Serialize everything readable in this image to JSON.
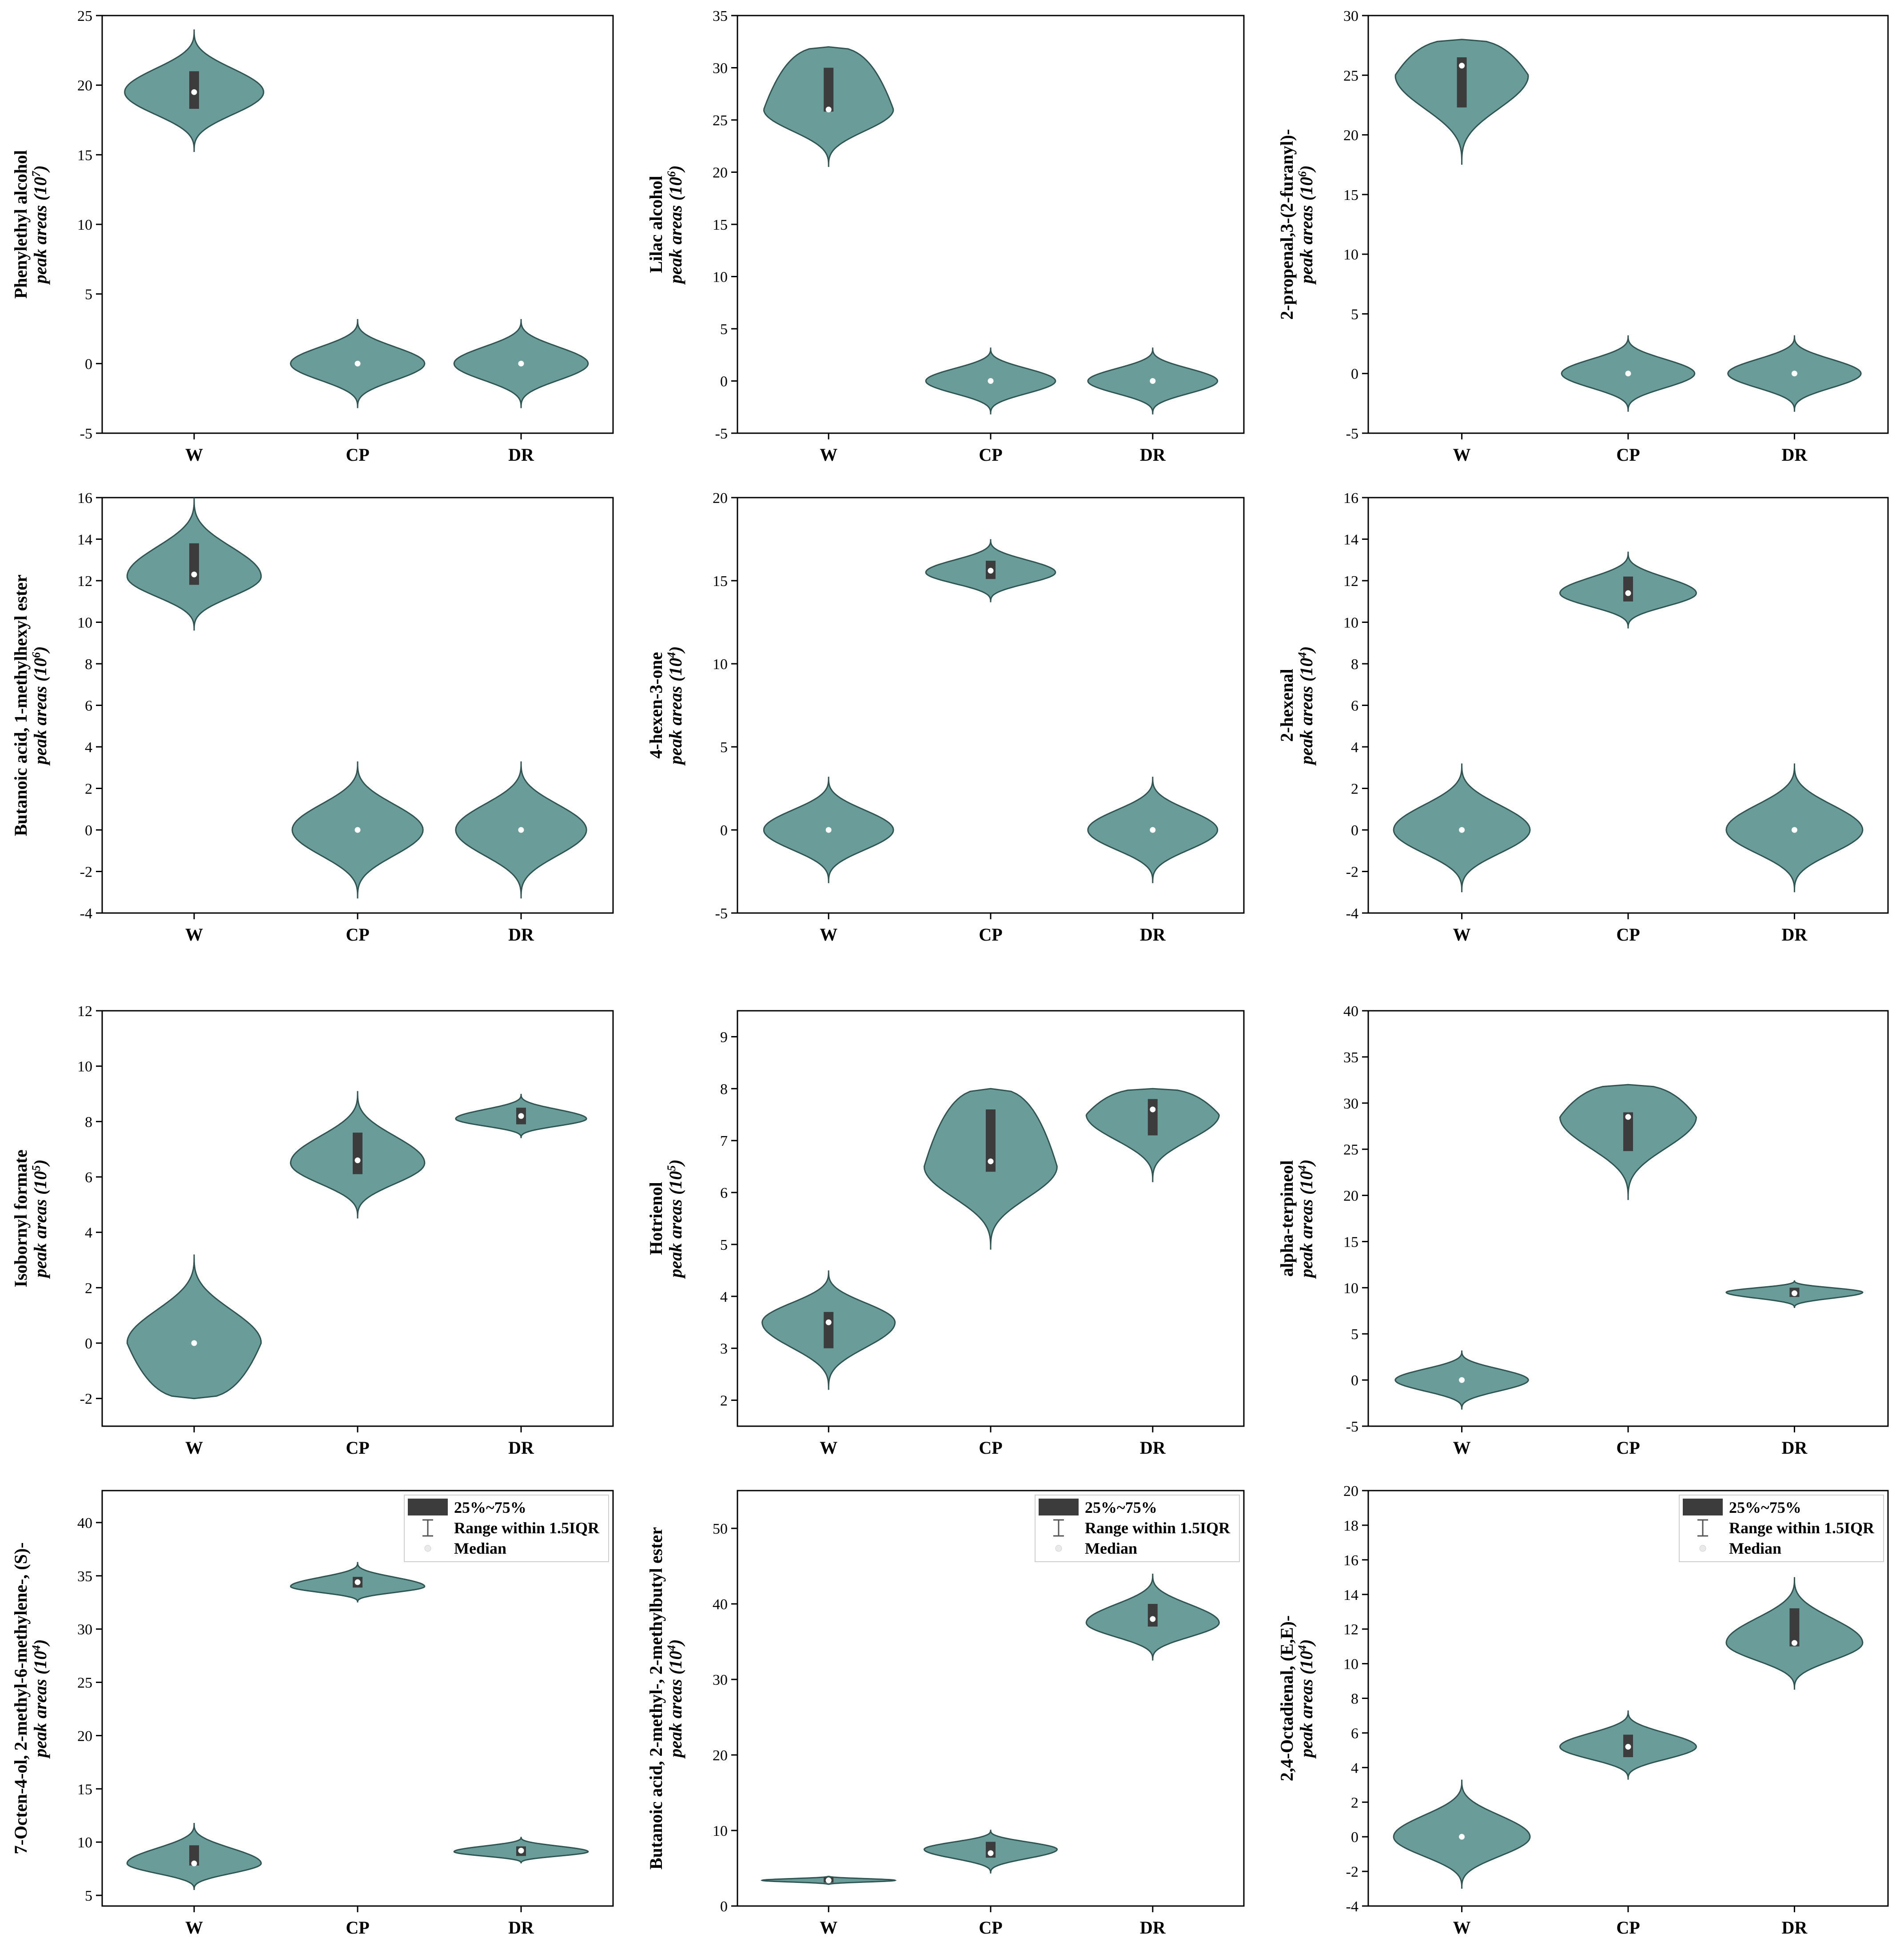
{
  "chart_data": [
    {
      "type": "violin",
      "compound": "Phenylethyl alcohol",
      "units_base": "peak areas (10",
      "units_exp": "7",
      "units_close": ")",
      "categories": [
        "W",
        "CP",
        "DR"
      ],
      "ylim": [
        -5,
        25
      ],
      "yticks": [
        -5,
        0,
        5,
        10,
        15,
        20,
        25
      ],
      "violins": [
        {
          "min": 15.2,
          "max": 24.0,
          "center": 19.5,
          "q1": 18.3,
          "q3": 21.0,
          "median": 19.5,
          "width": 0.85
        },
        {
          "min": -3.2,
          "max": 3.2,
          "center": 0,
          "q1": null,
          "q3": null,
          "median": 0,
          "width": 0.82
        },
        {
          "min": -3.2,
          "max": 3.2,
          "center": 0,
          "q1": null,
          "q3": null,
          "median": 0,
          "width": 0.82
        }
      ]
    },
    {
      "type": "violin",
      "compound": "Lilac alcohol",
      "units_base": "peak areas (10",
      "units_exp": "6",
      "units_close": ")",
      "categories": [
        "W",
        "CP",
        "DR"
      ],
      "ylim": [
        -5,
        35
      ],
      "yticks": [
        -5,
        0,
        5,
        10,
        15,
        20,
        25,
        30,
        35
      ],
      "violins": [
        {
          "min": 20.5,
          "max": 32.0,
          "center": 26.0,
          "q1": 25.8,
          "q3": 30.0,
          "median": 26.0,
          "width": 0.8,
          "flat_top": true
        },
        {
          "min": -3.2,
          "max": 3.2,
          "center": 0,
          "q1": null,
          "q3": null,
          "median": 0,
          "width": 0.8
        },
        {
          "min": -3.2,
          "max": 3.2,
          "center": 0,
          "q1": null,
          "q3": null,
          "median": 0,
          "width": 0.8
        }
      ]
    },
    {
      "type": "violin",
      "compound": "2-propenal,3-(2-furanyl)-",
      "units_base": "peak areas (10",
      "units_exp": "6",
      "units_close": ")",
      "categories": [
        "W",
        "CP",
        "DR"
      ],
      "ylim": [
        -5,
        30
      ],
      "yticks": [
        -5,
        0,
        5,
        10,
        15,
        20,
        25,
        30
      ],
      "violins": [
        {
          "min": 17.5,
          "max": 28.0,
          "center": 25.0,
          "q1": 22.3,
          "q3": 26.5,
          "median": 25.8,
          "width": 0.8,
          "flat_top": true
        },
        {
          "min": -3.2,
          "max": 3.2,
          "center": 0,
          "q1": null,
          "q3": null,
          "median": 0,
          "width": 0.8
        },
        {
          "min": -3.2,
          "max": 3.2,
          "center": 0,
          "q1": null,
          "q3": null,
          "median": 0,
          "width": 0.8
        }
      ]
    },
    {
      "type": "violin",
      "compound": "Butanoic acid, 1-methylhexyl ester",
      "units_base": "peak areas (10",
      "units_exp": "6",
      "units_close": ")",
      "categories": [
        "W",
        "CP",
        "DR"
      ],
      "ylim": [
        -4,
        16
      ],
      "yticks": [
        -4,
        -2,
        0,
        2,
        4,
        6,
        8,
        10,
        12,
        14,
        16
      ],
      "violins": [
        {
          "min": 9.6,
          "max": 16.0,
          "center": 12.2,
          "q1": 11.8,
          "q3": 13.8,
          "median": 12.3,
          "width": 0.82
        },
        {
          "min": -3.3,
          "max": 3.3,
          "center": 0,
          "q1": null,
          "q3": null,
          "median": 0,
          "width": 0.8
        },
        {
          "min": -3.3,
          "max": 3.3,
          "center": 0,
          "q1": null,
          "q3": null,
          "median": 0,
          "width": 0.8
        }
      ]
    },
    {
      "type": "violin",
      "compound": "4-hexen-3-one",
      "units_base": "peak areas (10",
      "units_exp": "4",
      "units_close": ")",
      "categories": [
        "W",
        "CP",
        "DR"
      ],
      "ylim": [
        -5,
        20
      ],
      "yticks": [
        -5,
        0,
        5,
        10,
        15,
        20
      ],
      "violins": [
        {
          "min": -3.2,
          "max": 3.2,
          "center": 0,
          "q1": null,
          "q3": null,
          "median": 0,
          "width": 0.8
        },
        {
          "min": 13.7,
          "max": 17.5,
          "center": 15.5,
          "q1": 15.1,
          "q3": 16.2,
          "median": 15.6,
          "width": 0.8
        },
        {
          "min": -3.2,
          "max": 3.2,
          "center": 0,
          "q1": null,
          "q3": null,
          "median": 0,
          "width": 0.8
        }
      ]
    },
    {
      "type": "violin",
      "compound": "2-hexenal",
      "units_base": "peak areas (10",
      "units_exp": "4",
      "units_close": ")",
      "categories": [
        "W",
        "CP",
        "DR"
      ],
      "ylim": [
        -4,
        16
      ],
      "yticks": [
        -4,
        -2,
        0,
        2,
        4,
        6,
        8,
        10,
        12,
        14,
        16
      ],
      "violins": [
        {
          "min": -3.0,
          "max": 3.2,
          "center": 0,
          "q1": null,
          "q3": null,
          "median": 0,
          "width": 0.82
        },
        {
          "min": 9.7,
          "max": 13.4,
          "center": 11.4,
          "q1": 11.0,
          "q3": 12.2,
          "median": 11.4,
          "width": 0.82
        },
        {
          "min": -3.0,
          "max": 3.2,
          "center": 0,
          "q1": null,
          "q3": null,
          "median": 0,
          "width": 0.82
        }
      ]
    },
    {
      "type": "violin",
      "compound": "Isobornyl formate",
      "units_base": "peak areas (10",
      "units_exp": "5",
      "units_close": ")",
      "categories": [
        "W",
        "CP",
        "DR"
      ],
      "ylim": [
        -3,
        12
      ],
      "yticks": [
        -2,
        0,
        2,
        4,
        6,
        8,
        10,
        12
      ],
      "violins": [
        {
          "min": -2.0,
          "max": 3.2,
          "center": 0,
          "q1": null,
          "q3": null,
          "median": 0,
          "width": 0.82,
          "flat_bottom": true
        },
        {
          "min": 4.5,
          "max": 9.1,
          "center": 6.5,
          "q1": 6.1,
          "q3": 7.6,
          "median": 6.6,
          "width": 0.82
        },
        {
          "min": 7.4,
          "max": 9.0,
          "center": 8.1,
          "q1": 7.9,
          "q3": 8.5,
          "median": 8.2,
          "width": 0.8
        }
      ]
    },
    {
      "type": "violin",
      "compound": "Hotrienol",
      "units_base": "peak areas (10",
      "units_exp": "5",
      "units_close": ")",
      "categories": [
        "W",
        "CP",
        "DR"
      ],
      "ylim": [
        1.5,
        9.5
      ],
      "yticks": [
        2,
        3,
        4,
        5,
        6,
        7,
        8,
        9
      ],
      "violins": [
        {
          "min": 2.2,
          "max": 4.5,
          "center": 3.5,
          "q1": 3.0,
          "q3": 3.7,
          "median": 3.5,
          "width": 0.82
        },
        {
          "min": 4.9,
          "max": 8.0,
          "center": 6.5,
          "q1": 6.4,
          "q3": 7.6,
          "median": 6.6,
          "width": 0.82,
          "flat_top": true
        },
        {
          "min": 6.2,
          "max": 8.0,
          "center": 7.5,
          "q1": 7.1,
          "q3": 7.8,
          "median": 7.6,
          "width": 0.82,
          "flat_top": true
        }
      ]
    },
    {
      "type": "violin",
      "compound": "alpha-terpineol",
      "units_base": "peak areas (10",
      "units_exp": "4",
      "units_close": ")",
      "categories": [
        "W",
        "CP",
        "DR"
      ],
      "ylim": [
        -5,
        40
      ],
      "yticks": [
        -5,
        0,
        5,
        10,
        15,
        20,
        25,
        30,
        35,
        40
      ],
      "violins": [
        {
          "min": -3.2,
          "max": 3.2,
          "center": 0,
          "q1": null,
          "q3": null,
          "median": 0,
          "width": 0.8
        },
        {
          "min": 19.5,
          "max": 32.0,
          "center": 28.5,
          "q1": 24.8,
          "q3": 29.0,
          "median": 28.5,
          "width": 0.82,
          "flat_top": true
        },
        {
          "min": 7.8,
          "max": 10.8,
          "center": 9.5,
          "q1": 9.0,
          "q3": 10.0,
          "median": 9.4,
          "width": 0.82
        }
      ]
    },
    {
      "type": "violin",
      "compound": "7-Octen-4-ol, 2-methyl-6-methylene-, (S)-",
      "units_base": "peak areas (10",
      "units_exp": "4",
      "units_close": ")",
      "categories": [
        "W",
        "CP",
        "DR"
      ],
      "ylim": [
        4,
        43
      ],
      "yticks": [
        5,
        10,
        15,
        20,
        25,
        30,
        35,
        40
      ],
      "violins": [
        {
          "min": 5.5,
          "max": 11.8,
          "center": 8.0,
          "q1": 7.8,
          "q3": 9.7,
          "median": 8.0,
          "width": 0.82
        },
        {
          "min": 32.5,
          "max": 36.3,
          "center": 34.0,
          "q1": 33.9,
          "q3": 34.9,
          "median": 34.4,
          "width": 0.82
        },
        {
          "min": 8.0,
          "max": 10.5,
          "center": 9.1,
          "q1": 8.7,
          "q3": 9.6,
          "median": 9.2,
          "width": 0.82
        }
      ]
    },
    {
      "type": "violin",
      "compound": "Butanoic acid, 2-methyl-, 2-methylbutyl ester",
      "units_base": "peak areas (10",
      "units_exp": "4",
      "units_close": ")",
      "categories": [
        "W",
        "CP",
        "DR"
      ],
      "ylim": [
        0,
        55
      ],
      "yticks": [
        0,
        10,
        20,
        30,
        40,
        50
      ],
      "violins": [
        {
          "min": 2.8,
          "max": 4.0,
          "center": 3.4,
          "q1": 3.1,
          "q3": 3.8,
          "median": 3.4,
          "width": 0.82
        },
        {
          "min": 4.3,
          "max": 10.1,
          "center": 7.5,
          "q1": 6.4,
          "q3": 8.5,
          "median": 7.0,
          "width": 0.82
        },
        {
          "min": 32.5,
          "max": 44.0,
          "center": 37.5,
          "q1": 37.0,
          "q3": 40.0,
          "median": 38.0,
          "width": 0.82
        }
      ]
    },
    {
      "type": "violin",
      "compound": "2,4-Octadienal, (E,E)-",
      "units_base": "peak areas (10",
      "units_exp": "4",
      "units_close": ")",
      "categories": [
        "W",
        "CP",
        "DR"
      ],
      "ylim": [
        -4,
        20
      ],
      "yticks": [
        -4,
        -2,
        0,
        2,
        4,
        6,
        8,
        10,
        12,
        14,
        16,
        18,
        20
      ],
      "violins": [
        {
          "min": -3.0,
          "max": 3.3,
          "center": 0,
          "q1": null,
          "q3": null,
          "median": 0,
          "width": 0.82
        },
        {
          "min": 3.3,
          "max": 7.3,
          "center": 5.2,
          "q1": 4.6,
          "q3": 5.9,
          "median": 5.2,
          "width": 0.82
        },
        {
          "min": 8.5,
          "max": 15.0,
          "center": 11.2,
          "q1": 11.0,
          "q3": 13.2,
          "median": 11.2,
          "width": 0.82
        }
      ]
    }
  ],
  "legend": {
    "items": [
      {
        "label": "25%~75%",
        "kind": "box"
      },
      {
        "label": "Range within 1.5IQR",
        "kind": "whisker"
      },
      {
        "label": "Median",
        "kind": "dot"
      }
    ]
  },
  "colors": {
    "violin_fill": "#6a9d9a",
    "violin_stroke": "#2f5553",
    "box": "#3c3c3c",
    "median": "#ffffff",
    "axis": "#000000"
  }
}
